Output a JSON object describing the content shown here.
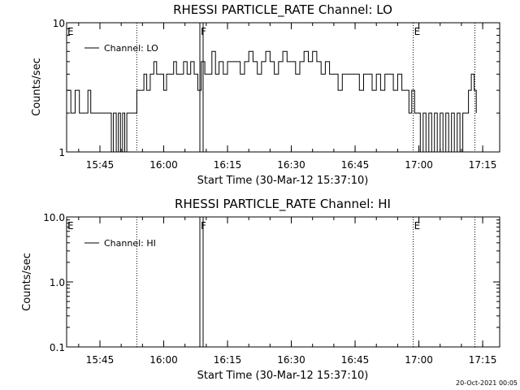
{
  "footer": {
    "timestamp": "20-Oct-2021 00:05"
  },
  "colors": {
    "background": "#ffffff",
    "foreground": "#000000"
  },
  "chart_data": [
    {
      "type": "line",
      "title": "RHESSI PARTICLE_RATE Channel: LO",
      "xlabel": "Start Time (30-Mar-12 15:37:10)",
      "ylabel": "Counts/sec",
      "y_scale": "log",
      "ylim": [
        1,
        10
      ],
      "y_ticks": [
        1,
        10
      ],
      "y_tick_labels": [
        "1",
        "10"
      ],
      "xlim": [
        "15:37:10",
        "17:19:00"
      ],
      "x_ticks": [
        "15:45",
        "16:00",
        "16:15",
        "16:30",
        "16:45",
        "17:00",
        "17:15"
      ],
      "grid": false,
      "legend": {
        "entries": [
          "Channel: LO"
        ],
        "placement": "top-left"
      },
      "markers": [
        {
          "time": "15:37:10",
          "label": "E",
          "style": "none"
        },
        {
          "time": "15:53:40",
          "label": "",
          "style": "dotted"
        },
        {
          "time": "16:08:30",
          "label": "F",
          "style": "solid-double"
        },
        {
          "time": "16:58:40",
          "label": "E",
          "style": "dotted"
        },
        {
          "time": "17:13:10",
          "label": "",
          "style": "dotted"
        }
      ],
      "series": [
        {
          "name": "Channel: LO",
          "points": [
            [
              "15:37:10",
              3
            ],
            [
              "15:38:10",
              2
            ],
            [
              "15:39:10",
              3
            ],
            [
              "15:40:10",
              2
            ],
            [
              "15:41:30",
              2
            ],
            [
              "15:42:10",
              3
            ],
            [
              "15:42:50",
              2
            ],
            [
              "15:43:30",
              2
            ],
            [
              "15:44:10",
              2
            ],
            [
              "15:45:10",
              2
            ],
            [
              "15:46:10",
              2
            ],
            [
              "15:47:10",
              2
            ],
            [
              "15:47:40",
              1
            ],
            [
              "15:48:10",
              2
            ],
            [
              "15:48:50",
              1
            ],
            [
              "15:49:20",
              2
            ],
            [
              "15:49:50",
              1
            ],
            [
              "15:50:20",
              2
            ],
            [
              "15:50:50",
              1
            ],
            [
              "15:51:20",
              2
            ],
            [
              "15:52:10",
              2
            ],
            [
              "15:53:10",
              2
            ],
            [
              "15:53:40",
              3
            ],
            [
              "15:54:30",
              3
            ],
            [
              "15:55:20",
              4
            ],
            [
              "15:56:00",
              3
            ],
            [
              "15:56:50",
              4
            ],
            [
              "15:57:40",
              5
            ],
            [
              "15:58:20",
              4
            ],
            [
              "15:59:10",
              4
            ],
            [
              "16:00:00",
              3
            ],
            [
              "16:00:40",
              4
            ],
            [
              "16:01:30",
              4
            ],
            [
              "16:02:20",
              5
            ],
            [
              "16:03:00",
              4
            ],
            [
              "16:03:50",
              4
            ],
            [
              "16:04:40",
              5
            ],
            [
              "16:05:30",
              4
            ],
            [
              "16:06:20",
              5
            ],
            [
              "16:07:10",
              4
            ],
            [
              "16:08:00",
              3
            ],
            [
              "16:08:50",
              5
            ],
            [
              "16:09:40",
              4
            ],
            [
              "16:10:30",
              4
            ],
            [
              "16:11:20",
              6
            ],
            [
              "16:12:10",
              4
            ],
            [
              "16:13:00",
              5
            ],
            [
              "16:14:00",
              4
            ],
            [
              "16:15:00",
              5
            ],
            [
              "16:16:00",
              5
            ],
            [
              "16:17:00",
              5
            ],
            [
              "16:18:00",
              4
            ],
            [
              "16:19:00",
              5
            ],
            [
              "16:20:00",
              6
            ],
            [
              "16:21:00",
              5
            ],
            [
              "16:22:00",
              4
            ],
            [
              "16:23:00",
              5
            ],
            [
              "16:24:00",
              6
            ],
            [
              "16:25:00",
              5
            ],
            [
              "16:26:00",
              4
            ],
            [
              "16:27:00",
              5
            ],
            [
              "16:28:00",
              6
            ],
            [
              "16:29:00",
              5
            ],
            [
              "16:30:00",
              5
            ],
            [
              "16:31:00",
              4
            ],
            [
              "16:32:00",
              5
            ],
            [
              "16:33:00",
              6
            ],
            [
              "16:34:00",
              5
            ],
            [
              "16:35:00",
              6
            ],
            [
              "16:36:00",
              5
            ],
            [
              "16:37:00",
              4
            ],
            [
              "16:38:00",
              5
            ],
            [
              "16:39:00",
              4
            ],
            [
              "16:40:00",
              4
            ],
            [
              "16:41:00",
              3
            ],
            [
              "16:42:00",
              4
            ],
            [
              "16:43:00",
              4
            ],
            [
              "16:44:00",
              4
            ],
            [
              "16:45:00",
              4
            ],
            [
              "16:46:00",
              3
            ],
            [
              "16:47:00",
              4
            ],
            [
              "16:48:00",
              4
            ],
            [
              "16:49:00",
              3
            ],
            [
              "16:50:00",
              4
            ],
            [
              "16:51:00",
              3
            ],
            [
              "16:52:00",
              4
            ],
            [
              "16:53:00",
              4
            ],
            [
              "16:54:00",
              3
            ],
            [
              "16:55:00",
              4
            ],
            [
              "16:56:00",
              3
            ],
            [
              "16:57:00",
              3
            ],
            [
              "16:57:40",
              2
            ],
            [
              "16:58:20",
              3
            ],
            [
              "16:59:00",
              2
            ],
            [
              "16:59:40",
              2
            ],
            [
              "17:00:20",
              1
            ],
            [
              "17:01:00",
              2
            ],
            [
              "17:01:40",
              1
            ],
            [
              "17:02:20",
              2
            ],
            [
              "17:03:00",
              1
            ],
            [
              "17:03:40",
              2
            ],
            [
              "17:04:20",
              1
            ],
            [
              "17:05:00",
              2
            ],
            [
              "17:05:40",
              1
            ],
            [
              "17:06:20",
              2
            ],
            [
              "17:07:00",
              1
            ],
            [
              "17:07:40",
              2
            ],
            [
              "17:08:20",
              1
            ],
            [
              "17:09:00",
              2
            ],
            [
              "17:09:40",
              1
            ],
            [
              "17:10:20",
              2
            ],
            [
              "17:11:00",
              2
            ],
            [
              "17:11:40",
              3
            ],
            [
              "17:12:20",
              4
            ],
            [
              "17:13:00",
              3
            ],
            [
              "17:13:30",
              2
            ]
          ]
        }
      ]
    },
    {
      "type": "line",
      "title": "RHESSI PARTICLE_RATE Channel: HI",
      "xlabel": "Start Time (30-Mar-12 15:37:10)",
      "ylabel": "Counts/sec",
      "y_scale": "log",
      "ylim": [
        0.1,
        10.0
      ],
      "y_ticks": [
        0.1,
        1.0,
        10.0
      ],
      "y_tick_labels": [
        "0.1",
        "1.0",
        "10.0"
      ],
      "xlim": [
        "15:37:10",
        "17:19:00"
      ],
      "x_ticks": [
        "15:45",
        "16:00",
        "16:15",
        "16:30",
        "16:45",
        "17:00",
        "17:15"
      ],
      "grid": false,
      "legend": {
        "entries": [
          "Channel: HI"
        ],
        "placement": "top-left"
      },
      "markers": [
        {
          "time": "15:37:10",
          "label": "E",
          "style": "none"
        },
        {
          "time": "15:53:40",
          "label": "",
          "style": "dotted"
        },
        {
          "time": "16:08:30",
          "label": "F",
          "style": "solid-double"
        },
        {
          "time": "16:58:40",
          "label": "E",
          "style": "dotted"
        },
        {
          "time": "17:13:10",
          "label": "",
          "style": "dotted"
        }
      ],
      "series": [
        {
          "name": "Channel: HI",
          "points": []
        }
      ]
    }
  ]
}
